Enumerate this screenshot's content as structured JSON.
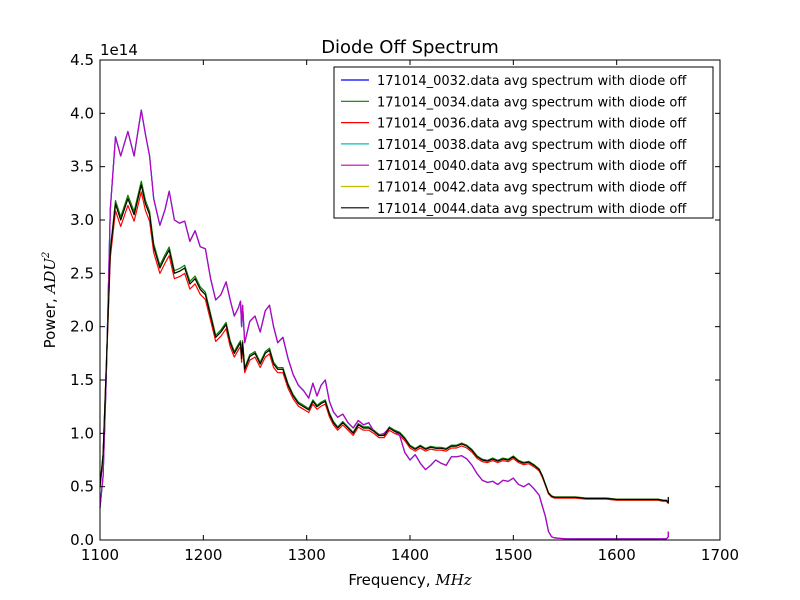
{
  "chart_data": {
    "type": "line",
    "title": "Diode Off Spectrum",
    "xlabel_text": "Frequency, ",
    "xlabel_unit": "MHz",
    "ylabel_text": "Power, ",
    "ylabel_unit": "ADU",
    "ylabel_unit_exp": "2",
    "y_offset_text": "1e14",
    "xlim": [
      1100,
      1700
    ],
    "ylim": [
      0.0,
      4.5
    ],
    "x_ticks": [
      1100,
      1200,
      1300,
      1400,
      1500,
      1600,
      1700
    ],
    "x_tick_labels": [
      "1100",
      "1200",
      "1300",
      "1400",
      "1500",
      "1600",
      "1700"
    ],
    "y_ticks": [
      0.0,
      0.5,
      1.0,
      1.5,
      2.0,
      2.5,
      3.0,
      3.5,
      4.0,
      4.5
    ],
    "y_tick_labels": [
      "0.0",
      "0.5",
      "1.0",
      "1.5",
      "2.0",
      "2.5",
      "3.0",
      "3.5",
      "4.0",
      "4.5"
    ],
    "grid": false,
    "legend_position": "top-right",
    "profiles": {
      "high": {
        "x": [
          1100,
          1103,
          1106,
          1110,
          1115,
          1120,
          1127,
          1133,
          1140,
          1144,
          1148,
          1152,
          1158,
          1163,
          1167,
          1172,
          1177,
          1182,
          1187,
          1192,
          1197,
          1202,
          1207,
          1212,
          1217,
          1222,
          1226,
          1230,
          1234,
          1236,
          1237,
          1238,
          1240,
          1245,
          1250,
          1255,
          1260,
          1264,
          1268,
          1272,
          1277,
          1282,
          1287,
          1292,
          1297,
          1302,
          1306,
          1310,
          1314,
          1318,
          1322,
          1326,
          1330,
          1335,
          1340,
          1345,
          1350,
          1355,
          1360,
          1365,
          1370,
          1375,
          1380,
          1385,
          1390,
          1395,
          1400,
          1405,
          1410,
          1415,
          1420,
          1425,
          1430,
          1435,
          1440,
          1445,
          1450,
          1455,
          1460,
          1465,
          1470,
          1475,
          1480,
          1485,
          1490,
          1495,
          1500,
          1505,
          1510,
          1515,
          1520,
          1525,
          1528,
          1531,
          1534,
          1537,
          1540,
          1545,
          1550,
          1560,
          1570,
          1580,
          1590,
          1600,
          1610,
          1620,
          1630,
          1640,
          1645,
          1648,
          1650,
          1650
        ],
        "y": [
          0.3,
          0.6,
          1.5,
          3.1,
          3.78,
          3.6,
          3.83,
          3.6,
          4.03,
          3.8,
          3.6,
          3.2,
          2.95,
          3.1,
          3.27,
          3.0,
          2.97,
          2.99,
          2.8,
          2.9,
          2.75,
          2.73,
          2.45,
          2.25,
          2.3,
          2.42,
          2.25,
          2.1,
          2.18,
          2.24,
          2.0,
          2.2,
          1.85,
          2.05,
          2.1,
          1.95,
          2.15,
          2.2,
          2.0,
          1.85,
          1.9,
          1.7,
          1.55,
          1.45,
          1.4,
          1.33,
          1.47,
          1.35,
          1.45,
          1.5,
          1.3,
          1.2,
          1.15,
          1.18,
          1.1,
          1.05,
          1.12,
          1.08,
          1.1,
          1.02,
          0.98,
          1.0,
          1.05,
          1.02,
          0.98,
          0.82,
          0.75,
          0.8,
          0.72,
          0.66,
          0.7,
          0.75,
          0.72,
          0.7,
          0.78,
          0.78,
          0.79,
          0.76,
          0.7,
          0.62,
          0.56,
          0.54,
          0.55,
          0.52,
          0.56,
          0.55,
          0.58,
          0.52,
          0.5,
          0.53,
          0.48,
          0.42,
          0.32,
          0.22,
          0.08,
          0.03,
          0.02,
          0.015,
          0.012,
          0.01,
          0.01,
          0.01,
          0.01,
          0.01,
          0.01,
          0.01,
          0.01,
          0.01,
          0.01,
          0.01,
          0.03,
          0.08
        ]
      },
      "low": {
        "x": [
          1100,
          1103,
          1106,
          1110,
          1115,
          1120,
          1127,
          1133,
          1140,
          1144,
          1148,
          1152,
          1158,
          1163,
          1167,
          1172,
          1177,
          1182,
          1187,
          1192,
          1197,
          1202,
          1207,
          1212,
          1217,
          1222,
          1226,
          1230,
          1234,
          1236,
          1237,
          1238,
          1240,
          1245,
          1250,
          1255,
          1260,
          1264,
          1268,
          1272,
          1277,
          1282,
          1287,
          1292,
          1297,
          1302,
          1306,
          1310,
          1314,
          1318,
          1322,
          1326,
          1330,
          1335,
          1340,
          1345,
          1350,
          1355,
          1360,
          1365,
          1370,
          1375,
          1380,
          1385,
          1390,
          1395,
          1400,
          1405,
          1410,
          1415,
          1420,
          1425,
          1430,
          1435,
          1440,
          1445,
          1450,
          1455,
          1460,
          1465,
          1470,
          1475,
          1480,
          1485,
          1490,
          1495,
          1500,
          1505,
          1510,
          1515,
          1520,
          1525,
          1528,
          1531,
          1534,
          1537,
          1540,
          1545,
          1550,
          1560,
          1570,
          1580,
          1590,
          1600,
          1610,
          1620,
          1630,
          1640,
          1645,
          1648,
          1650,
          1650
        ],
        "y": [
          0.5,
          0.8,
          1.6,
          2.7,
          3.15,
          3.0,
          3.2,
          3.05,
          3.33,
          3.15,
          3.05,
          2.75,
          2.55,
          2.65,
          2.72,
          2.5,
          2.52,
          2.55,
          2.4,
          2.45,
          2.35,
          2.3,
          2.1,
          1.9,
          1.95,
          2.02,
          1.85,
          1.75,
          1.82,
          1.85,
          1.7,
          1.85,
          1.6,
          1.72,
          1.75,
          1.65,
          1.75,
          1.78,
          1.65,
          1.6,
          1.6,
          1.45,
          1.35,
          1.28,
          1.25,
          1.22,
          1.3,
          1.25,
          1.28,
          1.3,
          1.18,
          1.1,
          1.05,
          1.1,
          1.05,
          1.0,
          1.08,
          1.05,
          1.05,
          1.02,
          0.98,
          0.98,
          1.05,
          1.02,
          1.0,
          0.95,
          0.88,
          0.85,
          0.88,
          0.85,
          0.87,
          0.86,
          0.86,
          0.85,
          0.88,
          0.88,
          0.9,
          0.88,
          0.84,
          0.78,
          0.75,
          0.74,
          0.76,
          0.74,
          0.76,
          0.75,
          0.78,
          0.74,
          0.72,
          0.73,
          0.7,
          0.66,
          0.6,
          0.52,
          0.44,
          0.41,
          0.4,
          0.4,
          0.4,
          0.4,
          0.39,
          0.39,
          0.39,
          0.38,
          0.38,
          0.38,
          0.38,
          0.38,
          0.37,
          0.37,
          0.35,
          0.4
        ]
      }
    },
    "series": [
      {
        "name": "171014_0032.data avg spectrum with diode off",
        "color": "#0000ff",
        "profile": "high",
        "scale": 1.0
      },
      {
        "name": "171014_0034.data avg spectrum with diode off",
        "color": "#008000",
        "profile": "low",
        "scale": 1.01
      },
      {
        "name": "171014_0036.data avg spectrum with diode off",
        "color": "#ff0000",
        "profile": "low",
        "scale": 0.98
      },
      {
        "name": "171014_0038.data avg spectrum with diode off",
        "color": "#00bfbf",
        "profile": "high",
        "scale": 1.0
      },
      {
        "name": "171014_0040.data avg spectrum with diode off",
        "color": "#bf00bf",
        "profile": "high",
        "scale": 1.0
      },
      {
        "name": "171014_0042.data avg spectrum with diode off",
        "color": "#bfbf00",
        "profile": "low",
        "scale": 1.0
      },
      {
        "name": "171014_0044.data avg spectrum with diode off",
        "color": "#000000",
        "profile": "low",
        "scale": 1.0
      }
    ]
  }
}
